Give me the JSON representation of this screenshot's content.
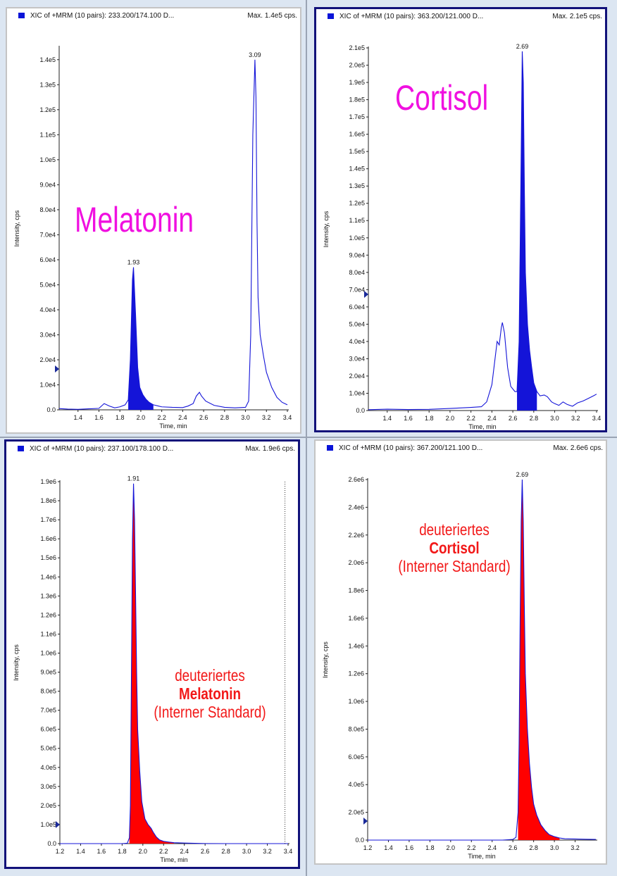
{
  "chart_data": [
    {
      "type": "line",
      "title": "XIC of +MRM (10 pairs): 233.200/174.100 D...",
      "max_label": "Max. 1.4e5 cps.",
      "annotation": "Melatonin",
      "ylabel": "Intensity, cps",
      "xlabel": "Time, min",
      "xlim": [
        1.22,
        3.4
      ],
      "ylim": [
        0,
        145000
      ],
      "xticks": [
        "1.4",
        "1.6",
        "1.8",
        "2.0",
        "2.2",
        "2.4",
        "2.6",
        "2.8",
        "3.0",
        "3.2",
        "3.4"
      ],
      "yticks": [
        "0.0",
        "1.0e4",
        "2.0e4",
        "3.0e4",
        "4.0e4",
        "5.0e4",
        "6.0e4",
        "7.0e4",
        "8.0e4",
        "9.0e4",
        "1.0e5",
        "1.1e5",
        "1.2e5",
        "1.3e5",
        "1.4e5"
      ],
      "peak_labels": [
        "1.93",
        "3.09"
      ],
      "series": [
        {
          "color": "#1414d8",
          "points": [
            [
              1.22,
              500
            ],
            [
              1.3,
              300
            ],
            [
              1.4,
              200
            ],
            [
              1.5,
              400
            ],
            [
              1.6,
              600
            ],
            [
              1.65,
              2500
            ],
            [
              1.7,
              1500
            ],
            [
              1.75,
              800
            ],
            [
              1.8,
              1200
            ],
            [
              1.85,
              2000
            ],
            [
              1.88,
              4000
            ],
            [
              1.9,
              20000
            ],
            [
              1.92,
              52000
            ],
            [
              1.93,
              57000
            ],
            [
              1.95,
              38000
            ],
            [
              1.97,
              17000
            ],
            [
              1.99,
              9000
            ],
            [
              2.02,
              6000
            ],
            [
              2.05,
              4200
            ],
            [
              2.08,
              3000
            ],
            [
              2.12,
              2000
            ],
            [
              2.16,
              1600
            ],
            [
              2.2,
              1200
            ],
            [
              2.3,
              1000
            ],
            [
              2.4,
              900
            ],
            [
              2.45,
              1500
            ],
            [
              2.5,
              2500
            ],
            [
              2.53,
              5500
            ],
            [
              2.56,
              7000
            ],
            [
              2.58,
              5500
            ],
            [
              2.62,
              3500
            ],
            [
              2.7,
              1800
            ],
            [
              2.8,
              1000
            ],
            [
              2.9,
              800
            ],
            [
              3.0,
              1000
            ],
            [
              3.03,
              3500
            ],
            [
              3.05,
              30000
            ],
            [
              3.07,
              110000
            ],
            [
              3.09,
              140000
            ],
            [
              3.1,
              125000
            ],
            [
              3.11,
              75000
            ],
            [
              3.12,
              45000
            ],
            [
              3.14,
              30000
            ],
            [
              3.17,
              22000
            ],
            [
              3.2,
              15000
            ],
            [
              3.25,
              9000
            ],
            [
              3.3,
              5000
            ],
            [
              3.35,
              3000
            ],
            [
              3.4,
              2000
            ]
          ],
          "fill_range": [
            1.88,
            2.15
          ]
        }
      ]
    },
    {
      "type": "line",
      "title": "XIC of +MRM (10 pairs): 363.200/121.000 D...",
      "max_label": "Max. 2.1e5 cps.",
      "annotation": "Cortisol",
      "ylabel": "Intensity, cps",
      "xlabel": "Time, min",
      "xlim": [
        1.22,
        3.4
      ],
      "ylim": [
        0,
        210000
      ],
      "xticks": [
        "1.4",
        "1.6",
        "1.8",
        "2.0",
        "2.2",
        "2.4",
        "2.6",
        "2.8",
        "3.0",
        "3.2",
        "3.4"
      ],
      "yticks": [
        "0.0",
        "1.0e4",
        "2.0e4",
        "3.0e4",
        "4.0e4",
        "5.0e4",
        "6.0e4",
        "7.0e4",
        "8.0e4",
        "9.0e4",
        "1.0e5",
        "1.1e5",
        "1.2e5",
        "1.3e5",
        "1.4e5",
        "1.5e5",
        "1.6e5",
        "1.7e5",
        "1.8e5",
        "1.9e5",
        "2.0e5",
        "2.1e5"
      ],
      "peak_labels": [
        "2.69"
      ],
      "series": [
        {
          "color": "#1414d8",
          "points": [
            [
              1.22,
              500
            ],
            [
              1.4,
              800
            ],
            [
              1.6,
              600
            ],
            [
              1.8,
              700
            ],
            [
              2.0,
              1200
            ],
            [
              2.2,
              1800
            ],
            [
              2.3,
              2200
            ],
            [
              2.35,
              5000
            ],
            [
              2.4,
              15000
            ],
            [
              2.43,
              30000
            ],
            [
              2.45,
              40000
            ],
            [
              2.47,
              38000
            ],
            [
              2.49,
              48000
            ],
            [
              2.5,
              51000
            ],
            [
              2.52,
              45000
            ],
            [
              2.55,
              25000
            ],
            [
              2.58,
              14000
            ],
            [
              2.62,
              11000
            ],
            [
              2.64,
              11000
            ],
            [
              2.66,
              40000
            ],
            [
              2.68,
              150000
            ],
            [
              2.69,
              208000
            ],
            [
              2.7,
              190000
            ],
            [
              2.71,
              130000
            ],
            [
              2.72,
              80000
            ],
            [
              2.74,
              50000
            ],
            [
              2.76,
              35000
            ],
            [
              2.78,
              25000
            ],
            [
              2.8,
              16000
            ],
            [
              2.83,
              11000
            ],
            [
              2.86,
              8500
            ],
            [
              2.9,
              9000
            ],
            [
              2.93,
              8000
            ],
            [
              2.97,
              5000
            ],
            [
              3.0,
              4000
            ],
            [
              3.04,
              3000
            ],
            [
              3.08,
              5000
            ],
            [
              3.12,
              3500
            ],
            [
              3.17,
              2500
            ],
            [
              3.22,
              4500
            ],
            [
              3.27,
              5500
            ],
            [
              3.32,
              7000
            ],
            [
              3.37,
              8500
            ],
            [
              3.4,
              9500
            ]
          ],
          "fill_range": [
            2.64,
            2.85
          ]
        }
      ]
    },
    {
      "type": "area",
      "title": "XIC of +MRM (10 pairs): 237.100/178.100 D...",
      "max_label": "Max. 1.9e6 cps.",
      "annotation": [
        "deuteriertes",
        "Melatonin",
        "(Interner Standard)"
      ],
      "ylabel": "Intensity, cps",
      "xlabel": "Time, min",
      "xlim": [
        1.2,
        3.4
      ],
      "ylim": [
        0,
        1900000
      ],
      "xticks": [
        "1.2",
        "1.4",
        "1.6",
        "1.8",
        "2.0",
        "2.2",
        "2.4",
        "2.6",
        "2.8",
        "3.0",
        "3.2",
        "3.4"
      ],
      "yticks": [
        "0.0",
        "1.0e5",
        "2.0e5",
        "3.0e5",
        "4.0e5",
        "5.0e5",
        "6.0e5",
        "7.0e5",
        "8.0e5",
        "9.0e5",
        "1.0e6",
        "1.1e6",
        "1.2e6",
        "1.3e6",
        "1.4e6",
        "1.5e6",
        "1.6e6",
        "1.7e6",
        "1.8e6",
        "1.9e6"
      ],
      "peak_labels": [
        "1.91"
      ],
      "marker_x": 3.37,
      "series": [
        {
          "color": "#1414d8",
          "fill": "#ff0000",
          "points": [
            [
              1.2,
              0
            ],
            [
              1.8,
              0
            ],
            [
              1.85,
              2000
            ],
            [
              1.87,
              30000
            ],
            [
              1.88,
              200000
            ],
            [
              1.89,
              900000
            ],
            [
              1.9,
              1600000
            ],
            [
              1.91,
              1890000
            ],
            [
              1.92,
              1700000
            ],
            [
              1.93,
              1300000
            ],
            [
              1.94,
              900000
            ],
            [
              1.95,
              600000
            ],
            [
              1.97,
              380000
            ],
            [
              1.99,
              220000
            ],
            [
              2.02,
              130000
            ],
            [
              2.05,
              100000
            ],
            [
              2.08,
              80000
            ],
            [
              2.1,
              60000
            ],
            [
              2.13,
              35000
            ],
            [
              2.16,
              20000
            ],
            [
              2.2,
              12000
            ],
            [
              2.25,
              8000
            ],
            [
              2.3,
              5000
            ],
            [
              2.4,
              3000
            ],
            [
              2.5,
              1500
            ],
            [
              2.6,
              500
            ],
            [
              2.8,
              0
            ],
            [
              3.4,
              0
            ]
          ],
          "fill_range": [
            1.87,
            2.3
          ]
        }
      ]
    },
    {
      "type": "area",
      "title": "XIC of +MRM (10 pairs): 367.200/121.100 D...",
      "max_label": "Max. 2.6e6 cps.",
      "annotation": [
        "deuteriertes",
        "Cortisol",
        "(Interner Standard)"
      ],
      "ylabel": "Intensity, cps",
      "xlabel": "Time, min",
      "xlim": [
        1.2,
        3.4
      ],
      "ylim": [
        0,
        2600000
      ],
      "xticks": [
        "1.2",
        "1.4",
        "1.6",
        "1.8",
        "2.0",
        "2.2",
        "2.4",
        "2.6",
        "2.8",
        "3.0",
        "3.2"
      ],
      "yticks": [
        "0.0",
        "2.0e5",
        "4.0e5",
        "6.0e5",
        "8.0e5",
        "1.0e6",
        "1.2e6",
        "1.4e6",
        "1.6e6",
        "1.8e6",
        "2.0e6",
        "2.2e6",
        "2.4e6",
        "2.6e6"
      ],
      "peak_labels": [
        "2.69"
      ],
      "series": [
        {
          "color": "#1414d8",
          "fill": "#ff0000",
          "points": [
            [
              1.2,
              0
            ],
            [
              2.5,
              0
            ],
            [
              2.6,
              5000
            ],
            [
              2.63,
              20000
            ],
            [
              2.65,
              200000
            ],
            [
              2.66,
              700000
            ],
            [
              2.67,
              1600000
            ],
            [
              2.68,
              2300000
            ],
            [
              2.69,
              2600000
            ],
            [
              2.7,
              2300000
            ],
            [
              2.71,
              1700000
            ],
            [
              2.72,
              1200000
            ],
            [
              2.74,
              800000
            ],
            [
              2.76,
              550000
            ],
            [
              2.78,
              380000
            ],
            [
              2.8,
              260000
            ],
            [
              2.83,
              180000
            ],
            [
              2.87,
              110000
            ],
            [
              2.91,
              70000
            ],
            [
              2.95,
              40000
            ],
            [
              3.0,
              25000
            ],
            [
              3.05,
              15000
            ],
            [
              3.1,
              10000
            ],
            [
              3.2,
              8000
            ],
            [
              3.3,
              6000
            ],
            [
              3.4,
              5000
            ]
          ],
          "fill_range": [
            2.64,
            3.05
          ]
        }
      ]
    }
  ]
}
